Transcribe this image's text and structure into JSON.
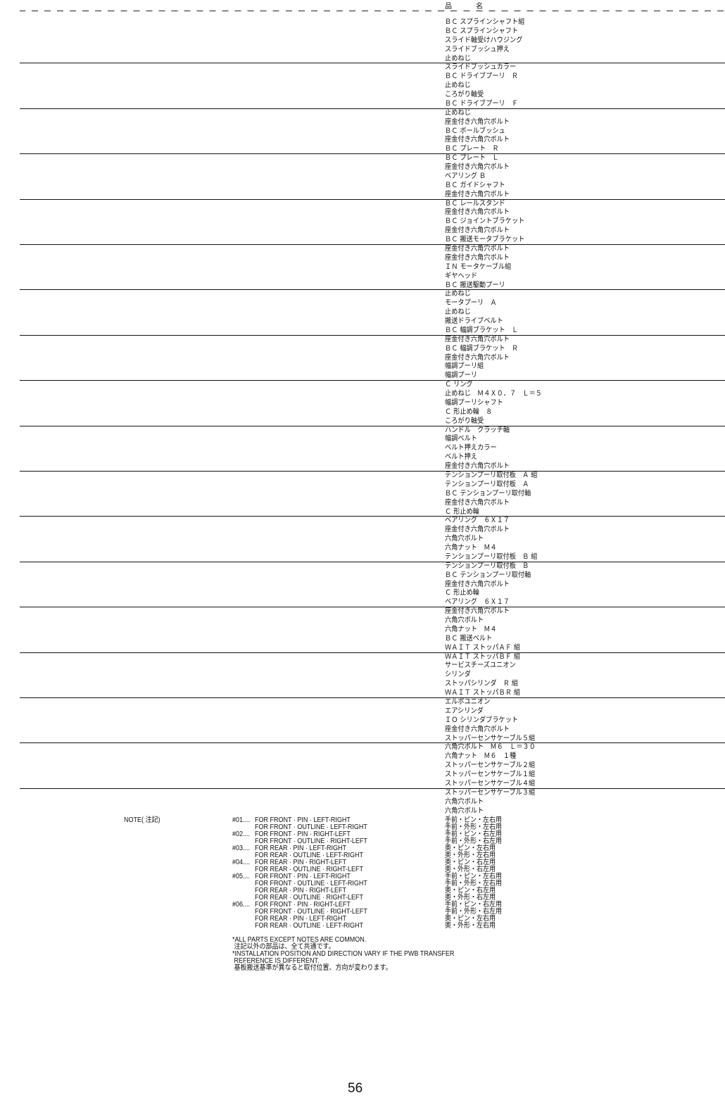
{
  "table": {
    "header": "品　名",
    "groups": [
      [
        "ＢＣ スプラインシャフト組",
        "ＢＣ スプラインシャフト",
        "スライド軸受けハウジング",
        "スライドブッシュ押え",
        "止めねじ"
      ],
      [
        "スライドブッシュカラー",
        "ＢＣ ドライブプーリ　Ｒ",
        "止めねじ",
        "ころがり軸受",
        "ＢＣ ドライブプーリ　Ｆ"
      ],
      [
        "止めねじ",
        "座金付き六角穴ボルト",
        "ＢＣ ボールブッシュ",
        "座金付き六角穴ボルト",
        "ＢＣ プレート　Ｒ"
      ],
      [
        "ＢＣ プレート　Ｌ",
        "座金付き六角穴ボルト",
        "ベアリング Ｂ",
        "ＢＣ ガイドシャフト",
        "座金付き六角穴ボルト"
      ],
      [
        "ＢＣ レールスタンド",
        "座金付き六角穴ボルト",
        "ＢＣ ジョイントブラケット",
        "座金付き六角穴ボルト",
        "ＢＣ 搬送モータブラケット"
      ],
      [
        "座金付き六角穴ボルト",
        "座金付き六角穴ボルト",
        "ＩＮ モータケーブル組",
        "ギヤヘッド",
        "ＢＣ 搬送駆動プーリ"
      ],
      [
        "止めねじ",
        "モータプーリ　Ａ",
        "止めねじ",
        "搬送ドライブベルト",
        "ＢＣ 幅調ブラケット　Ｌ"
      ],
      [
        "座金付き六角穴ボルト",
        "ＢＣ 幅調ブラケット　Ｒ",
        "座金付き六角穴ボルト",
        "幅調プーリ組",
        "幅調プーリ"
      ],
      [
        "Ｃ リング",
        "止めねじ　Ｍ４Ｘ０．７　Ｌ＝５",
        "幅調プーリシャフト",
        "Ｃ 形止め輪　８",
        "ころがり軸受"
      ],
      [
        "ハンドル　クラッチ軸",
        "幅調ベルト",
        "ベルト押えカラー",
        "ベルト押え",
        "座金付き六角穴ボルト"
      ],
      [
        "テンションプーリ取付板　Ａ 組",
        "テンションプーリ取付板　Ａ",
        "ＢＣ テンションプーリ取付軸",
        "座金付き六角穴ボルト",
        "Ｃ 形止め輪"
      ],
      [
        "ベアリング　６Ｘ１７",
        "座金付き六角穴ボルト",
        "六角穴ボルト",
        "六角ナット　Ｍ４",
        "テンションプーリ取付板　Ｂ 組"
      ],
      [
        "テンションプーリ取付板　Ｂ",
        "ＢＣ テンションプーリ取付軸",
        "座金付き六角穴ボルト",
        "Ｃ 形止め輪",
        "ベアリング　６Ｘ１７"
      ],
      [
        "座金付き六角穴ボルト",
        "六角穴ボルト",
        "六角ナット　Ｍ４",
        "ＢＣ 搬送ベルト",
        "ＷＡＩＴ ストッパＡＦ 組"
      ],
      [
        "ＷＡＩＴ ストッパＢＦ 組",
        "サービスチーズユニオン",
        "シリンダ",
        "ストッパシリンダ　Ｒ 組",
        "ＷＡＩＴ ストッパＢＲ 組"
      ],
      [
        "エルボユニオン",
        "エアシリンダ",
        "ＩＯ シリンダブラケット",
        "座金付き六角穴ボルト",
        "ストッパーセンサケーブル５組"
      ],
      [
        "六角穴ボルト　Ｍ６　Ｌ＝３０",
        "六角ナット　Ｍ６　１種",
        "ストッパーセンサケーブル２組",
        "ストッパーセンサケーブル１組",
        "ストッパーセンサケーブル４組"
      ],
      [
        "ストッパーセンサケーブル３組",
        "六角穴ボルト",
        "六角穴ボルト"
      ]
    ]
  },
  "notes": {
    "label": "NOTE( 注記)",
    "rows": [
      {
        "num": "#01....",
        "en": "FOR FRONT · PIN · LEFT-RIGHT",
        "ja": "手前・ピン・左右用"
      },
      {
        "num": "",
        "en": "FOR FRONT · OUTLINE · LEFT-RIGHT",
        "ja": "手前・外形・左右用"
      },
      {
        "num": "#02....",
        "en": "FOR FRONT · PIN · RIGHT-LEFT",
        "ja": "手前・ピン・右左用"
      },
      {
        "num": "",
        "en": "FOR FRONT · OUTLINE · RIGHT-LEFT",
        "ja": "手前・外形・右左用"
      },
      {
        "num": "#03....",
        "en": "FOR REAR · PIN · LEFT-RIGHT",
        "ja": "奥・ピン・左右用"
      },
      {
        "num": "",
        "en": "FOR REAR · OUTLINE · LEFT-RIGHT",
        "ja": "奥・外形・左右用"
      },
      {
        "num": "#04....",
        "en": "FOR REAR · PIN · RIGHT-LEFT",
        "ja": "奥・ピン・右左用"
      },
      {
        "num": "",
        "en": "FOR REAR · OUTLINE · RIGHT-LEFT",
        "ja": "奥・外形・右左用"
      },
      {
        "num": "#05....",
        "en": "FOR FRONT · PIN · LEFT-RIGHT",
        "ja": "手前・ピン・左右用"
      },
      {
        "num": "",
        "en": "FOR FRONT · OUTLINE · LEFT-RIGHT",
        "ja": "手前・外形・左右用"
      },
      {
        "num": "",
        "en": "FOR REAR · PIN · RIGHT-LEFT",
        "ja": "奥・ピン・右左用"
      },
      {
        "num": "",
        "en": "FOR REAR · OUTLINE · RIGHT-LEFT",
        "ja": "奥・外形・右左用"
      },
      {
        "num": "#06....",
        "en": "FOR FRONT · PIN · RIGHT-LEFT",
        "ja": "手前・ピン・右左用"
      },
      {
        "num": "",
        "en": "FOR FRONT · OUTLINE · RIGHT-LEFT",
        "ja": "手前・外形・右左用"
      },
      {
        "num": "",
        "en": "FOR REAR · PIN · LEFT-RIGHT",
        "ja": "奥・ピン・左右用"
      },
      {
        "num": "",
        "en": "FOR REAR · OUTLINE · LEFT-RIGHT",
        "ja": "奥・外形・左右用"
      }
    ],
    "footer": [
      "*ALL PARTS EXCEPT NOTES ARE COMMON.",
      " 注記以外の部品は、全て共通です。",
      "*INSTALLATION POSITION AND DIRECTION VARY IF THE PWB TRANSFER",
      " REFERENCE IS DIFFERENT.",
      " 基板搬送基準が異なると取付位置、方向が変わります。"
    ]
  },
  "page_number": "56"
}
